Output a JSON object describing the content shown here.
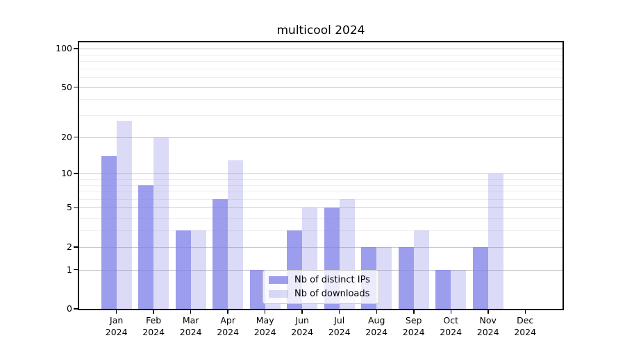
{
  "title": "multicool 2024",
  "chart_data": {
    "type": "bar",
    "title": "multicool 2024",
    "categories": [
      "Jan",
      "Feb",
      "Mar",
      "Apr",
      "May",
      "Jun",
      "Jul",
      "Aug",
      "Sep",
      "Oct",
      "Nov",
      "Dec"
    ],
    "x_tick_year": "2024",
    "series": [
      {
        "name": "Nb of distinct IPs",
        "color": "rgba(130,130,232,0.78)",
        "color_hex_on_white": "#a0a0ec",
        "values": [
          14,
          8,
          3,
          6,
          1,
          3,
          5,
          2,
          2,
          1,
          2,
          0
        ]
      },
      {
        "name": "Nb of downloads",
        "color": "rgba(130,130,232,0.29)",
        "color_hex_on_white": "#dbdbf8",
        "values": [
          27,
          20,
          3,
          13,
          1,
          5,
          6,
          2,
          3,
          1,
          10,
          0
        ]
      }
    ],
    "y_axis": {
      "scale": "log10(1+v)",
      "major_ticks": [
        0,
        1,
        2,
        5,
        10,
        20,
        50,
        100
      ],
      "minor_gridlines": [
        3,
        4,
        6,
        7,
        8,
        9,
        30,
        40,
        60,
        70,
        80,
        90
      ],
      "range": [
        0,
        112
      ]
    },
    "xlabel": "",
    "ylabel": "",
    "grid": true,
    "legend_position": "lower center"
  },
  "colors": {
    "background": "#ffffff",
    "bar_base": "#8282e8",
    "major_grid": "#c8c8c8",
    "minor_grid": "#ededed",
    "spine": "#000000",
    "text": "#000000",
    "legend_border": "#cccccc",
    "legend_background": "rgba(255,255,255,0.8)"
  }
}
